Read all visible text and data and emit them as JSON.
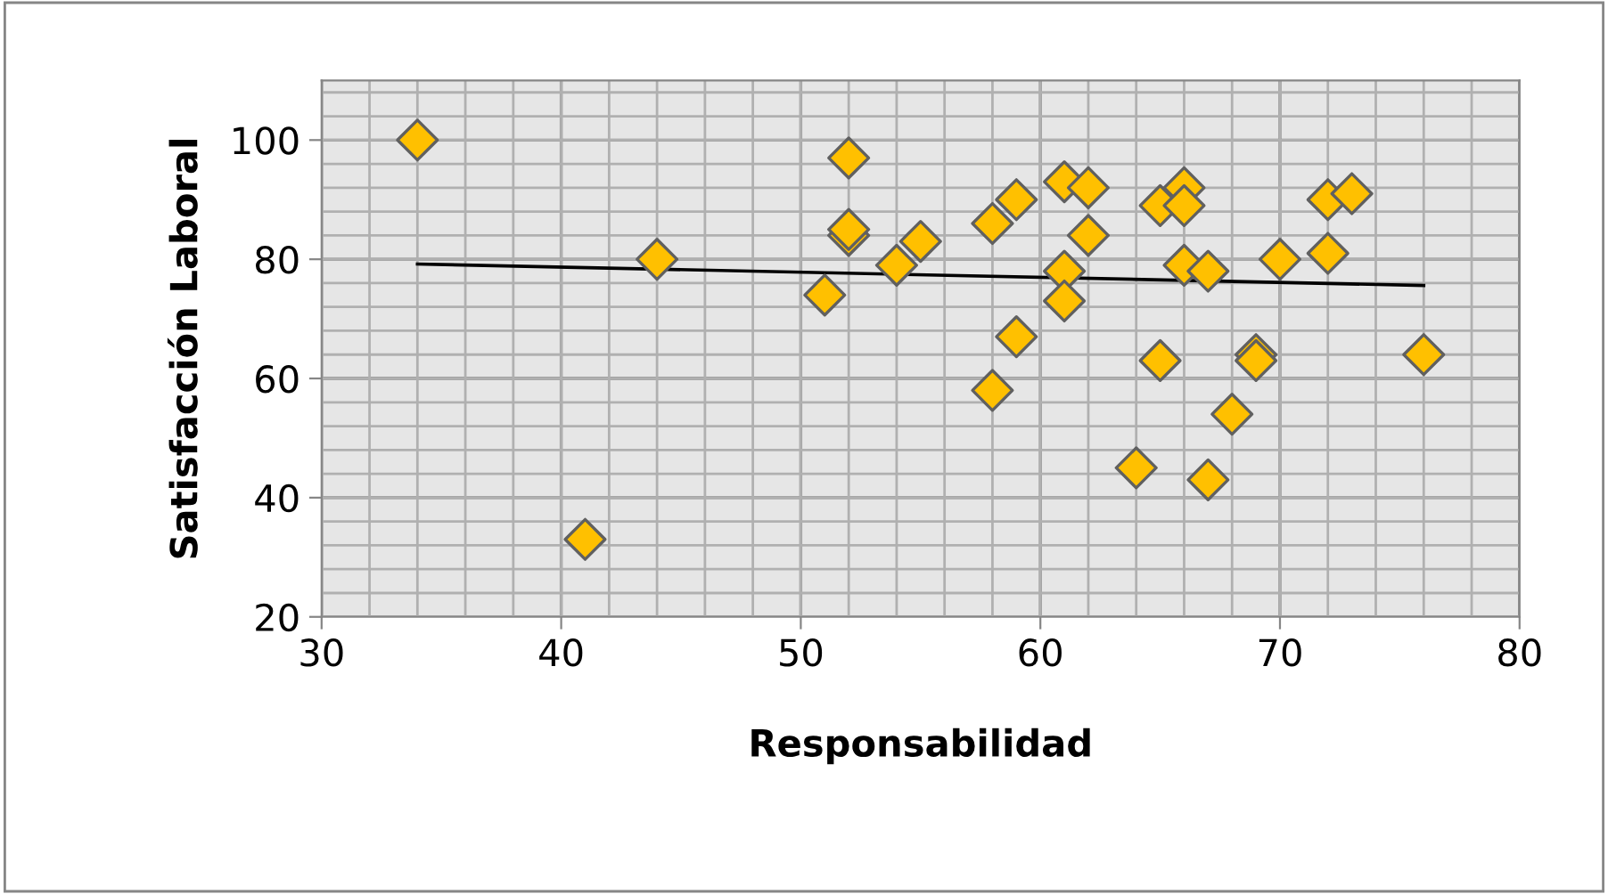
{
  "chart_data": {
    "type": "scatter",
    "xlabel": "Responsabilidad",
    "ylabel": "Satisfacción Laboral",
    "xlim": [
      30,
      80
    ],
    "xticks": [
      30,
      40,
      50,
      60,
      70,
      80
    ],
    "ylim": [
      20,
      110
    ],
    "yticks": [
      20,
      40,
      60,
      80,
      100
    ],
    "grid": true,
    "series": [
      {
        "marker": "diamond",
        "color": "#ffc000",
        "x": [
          34,
          41,
          44,
          51,
          52,
          52,
          52,
          54,
          55,
          58,
          58,
          59,
          59,
          61,
          61,
          61,
          62,
          62,
          64,
          65,
          65,
          66,
          66,
          66,
          67,
          67,
          68,
          69,
          69,
          70,
          72,
          72,
          73,
          76
        ],
        "values": [
          100,
          33,
          80,
          74,
          97,
          84,
          85,
          79,
          83,
          86,
          58,
          90,
          67,
          93,
          78,
          73,
          92,
          84,
          45,
          89,
          63,
          92,
          89,
          79,
          78,
          43,
          54,
          64,
          63,
          80,
          90,
          81,
          91,
          64
        ]
      },
      {
        "type": "line",
        "marker": "none",
        "color": "#000000",
        "x": [
          34,
          76
        ],
        "values": [
          79.2,
          75.6
        ]
      }
    ]
  }
}
